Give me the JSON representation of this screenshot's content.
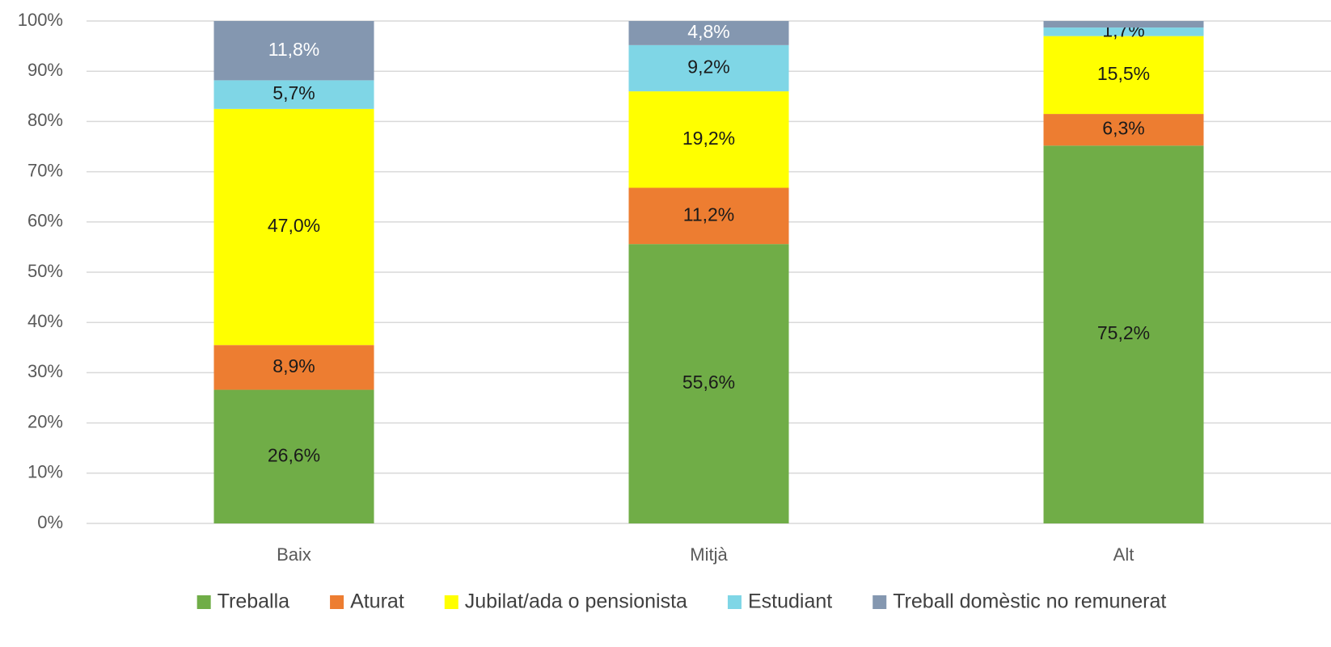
{
  "chart_data": {
    "type": "stacked_bar",
    "categories": [
      "Baix",
      "Mitjà",
      "Alt"
    ],
    "series": [
      {
        "name": "Treballa",
        "color": "#70ad47",
        "values": [
          26.6,
          55.6,
          75.2
        ],
        "value_labels": [
          "26,6%",
          "55,6%",
          "75,2%"
        ]
      },
      {
        "name": "Aturat",
        "color": "#ed7d31",
        "values": [
          8.9,
          11.2,
          6.3
        ],
        "value_labels": [
          "8,9%",
          "11,2%",
          "6,3%"
        ]
      },
      {
        "name": "Jubilat/ada o pensionista",
        "color": "#ffff00",
        "values": [
          47.0,
          19.2,
          15.5
        ],
        "value_labels": [
          "47,0%",
          "19,2%",
          "15,5%"
        ]
      },
      {
        "name": "Estudiant",
        "color": "#7fd6e6",
        "values": [
          5.7,
          9.2,
          1.7
        ],
        "value_labels": [
          "5,7%",
          "9,2%",
          "1,7%"
        ]
      },
      {
        "name": "Treball domèstic no remunerat",
        "color": "#8497b0",
        "values": [
          11.8,
          4.8,
          1.3
        ],
        "value_labels": [
          "11,8%",
          "4,8%",
          null
        ]
      }
    ],
    "ylim": [
      0,
      100
    ],
    "yticks": [
      {
        "value": 0,
        "label": "0%"
      },
      {
        "value": 10,
        "label": "10%"
      },
      {
        "value": 20,
        "label": "20%"
      },
      {
        "value": 30,
        "label": "30%"
      },
      {
        "value": 40,
        "label": "40%"
      },
      {
        "value": 50,
        "label": "50%"
      },
      {
        "value": 60,
        "label": "60%"
      },
      {
        "value": 70,
        "label": "70%"
      },
      {
        "value": 80,
        "label": "80%"
      },
      {
        "value": 90,
        "label": "90%"
      },
      {
        "value": 100,
        "label": "100%"
      }
    ],
    "grid": true,
    "legend": "bottom"
  }
}
